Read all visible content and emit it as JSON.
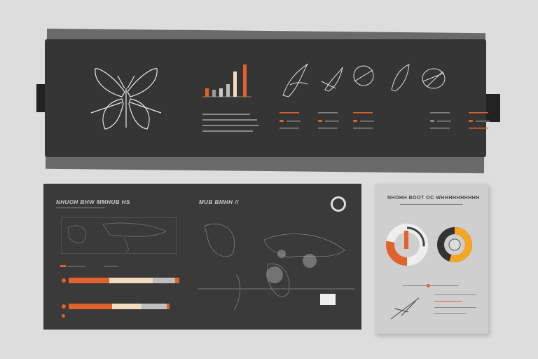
{
  "banner": {
    "title": "",
    "bar_chart": {
      "values": [
        12,
        14,
        18,
        30,
        44
      ]
    },
    "items": 5
  },
  "panel": {
    "title_left": "NHUOH BHW MMHUB HS",
    "title_map": "MUB BMHH //",
    "bars": [
      {
        "segments": [
          {
            "color": "#e0622d",
            "value": 35
          },
          {
            "color": "#f1dcc0",
            "value": 37
          },
          {
            "color": "#bfbfbf",
            "value": 20
          },
          {
            "color": "#e0622d",
            "value": 4
          }
        ]
      },
      {
        "segments": [
          {
            "color": "#e0622d",
            "value": 40
          },
          {
            "color": "#f1dcc0",
            "value": 30
          },
          {
            "color": "#bfbfbf",
            "value": 25
          },
          {
            "color": "#e0622d",
            "value": 2
          }
        ]
      }
    ]
  },
  "card": {
    "title": "NHOHH BOOT OC WHHHHHHHHHH",
    "donut1": {
      "value": 0.28
    },
    "donut2": {
      "value": 0.55
    }
  },
  "colors": {
    "accent": "#e0622d",
    "dark": "#353535",
    "cream": "#f1dcc0"
  }
}
